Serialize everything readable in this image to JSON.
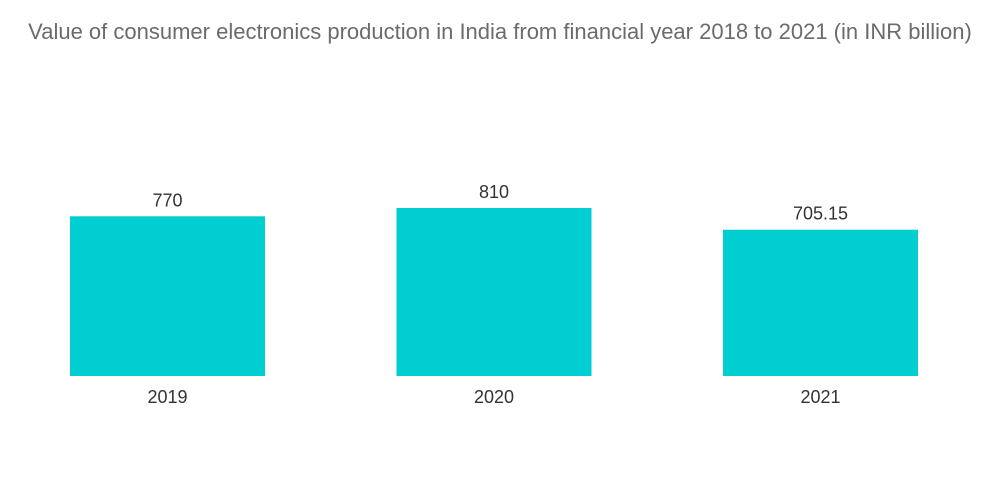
{
  "chart_data": {
    "type": "bar",
    "title": "Value of consumer electronics production in India from financial year 2018 to 2021 (in INR billion)",
    "categories": [
      "2019",
      "2020",
      "2021"
    ],
    "values": [
      770,
      810,
      705.15
    ],
    "value_labels": [
      "770",
      "810",
      "705.15"
    ],
    "xlabel": "",
    "ylabel": "",
    "ylim": [
      0,
      810
    ],
    "grid": false,
    "legend": "none",
    "bar_color": "#00CED1"
  }
}
